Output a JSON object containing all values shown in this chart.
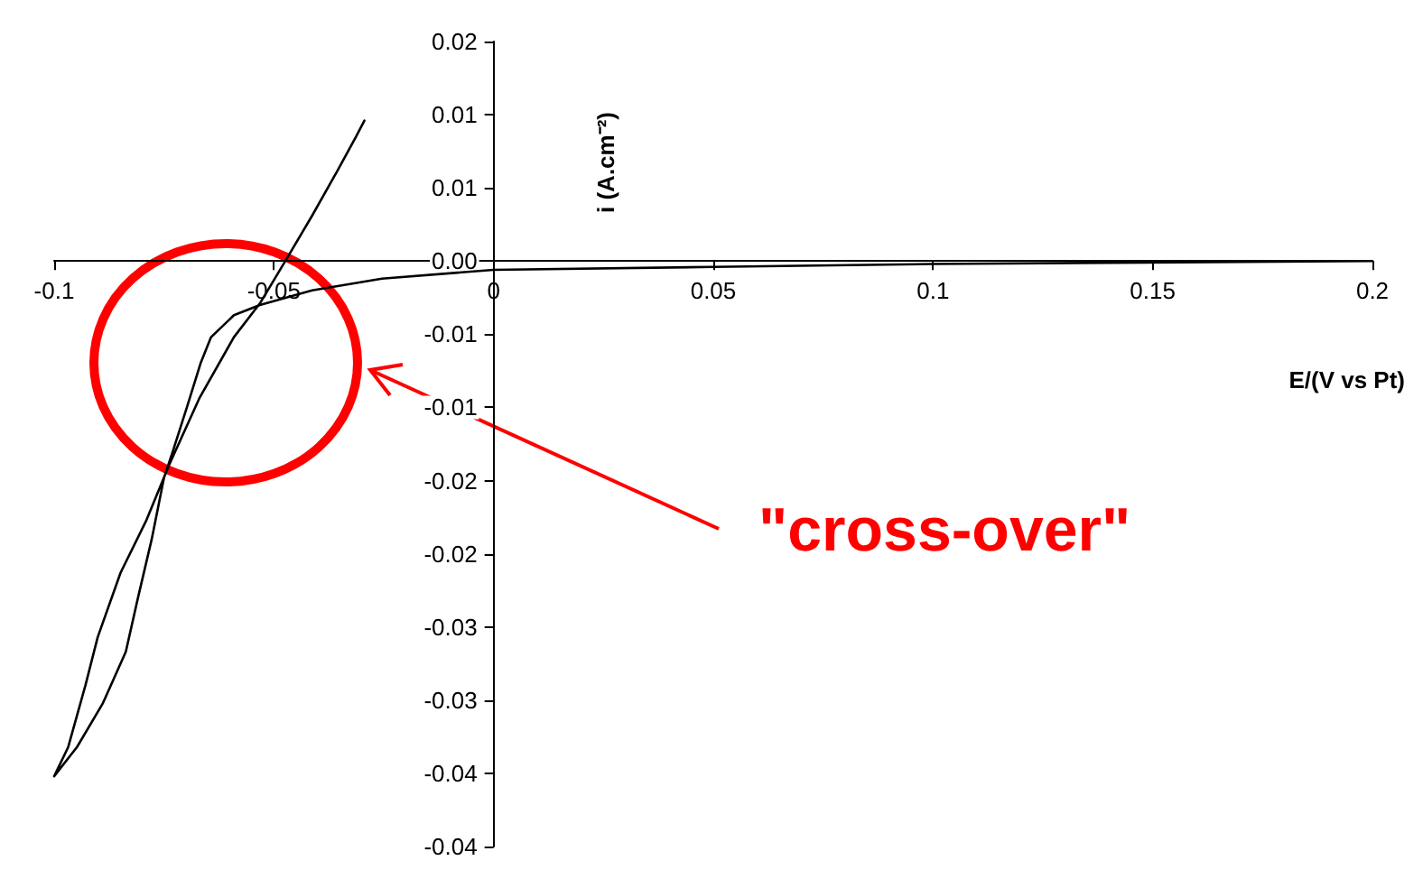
{
  "chart_data": {
    "type": "line",
    "xlabel": "E/(V vs Pt)",
    "ylabel": "i (A.cm⁻²)",
    "xlim": [
      -0.1,
      0.2
    ],
    "xticks": [
      -0.1,
      -0.05,
      0,
      0.05,
      0.1,
      0.15,
      0.2
    ],
    "ylim": [
      -0.04,
      0.015
    ],
    "yticks": [
      {
        "value": 0.015,
        "label": "0.02"
      },
      {
        "value": 0.01,
        "label": "0.01"
      },
      {
        "value": 0.005,
        "label": "0.01"
      },
      {
        "value": 0,
        "label": "0.00"
      },
      {
        "value": -0.005,
        "label": "-0.01"
      },
      {
        "value": -0.01,
        "label": "-0.01"
      },
      {
        "value": -0.015,
        "label": "-0.02"
      },
      {
        "value": -0.02,
        "label": "-0.02"
      },
      {
        "value": -0.025,
        "label": "-0.03"
      },
      {
        "value": -0.03,
        "label": "-0.03"
      },
      {
        "value": -0.035,
        "label": "-0.04"
      },
      {
        "value": -0.04,
        "label": "-0.04"
      }
    ],
    "grid": false,
    "marker": "none",
    "line_style": "solid",
    "series": [
      {
        "color": "#000000",
        "x": [
          0.2,
          0.149,
          0.1,
          0.05,
          0,
          -0.0254,
          -0.0413,
          -0.0532,
          -0.0591,
          -0.0643,
          -0.0667,
          -0.0698,
          -0.073,
          -0.075,
          -0.0778,
          -0.081,
          -0.0837,
          -0.0889,
          -0.0948,
          -0.1,
          -0.0968,
          -0.0929,
          -0.0901,
          -0.0849,
          -0.079,
          -0.0738,
          -0.067,
          -0.0591,
          -0.0532,
          -0.0472,
          -0.0413,
          -0.0353,
          -0.0313,
          -0.0294
        ],
        "values": [
          0,
          -0.0001,
          -0.0002,
          -0.0004,
          -0.0006,
          -0.0012,
          -0.002,
          -0.003,
          -0.0037,
          -0.0052,
          -0.007,
          -0.01,
          -0.013,
          -0.0148,
          -0.019,
          -0.0231,
          -0.0267,
          -0.0302,
          -0.0332,
          -0.0352,
          -0.0332,
          -0.029,
          -0.0257,
          -0.0213,
          -0.0177,
          -0.0139,
          -0.0094,
          -0.0052,
          -0.0029,
          0.0001,
          0.0031,
          0.0063,
          0.0085,
          0.0096
        ]
      }
    ],
    "annotations": [
      "\"cross-over\""
    ]
  }
}
